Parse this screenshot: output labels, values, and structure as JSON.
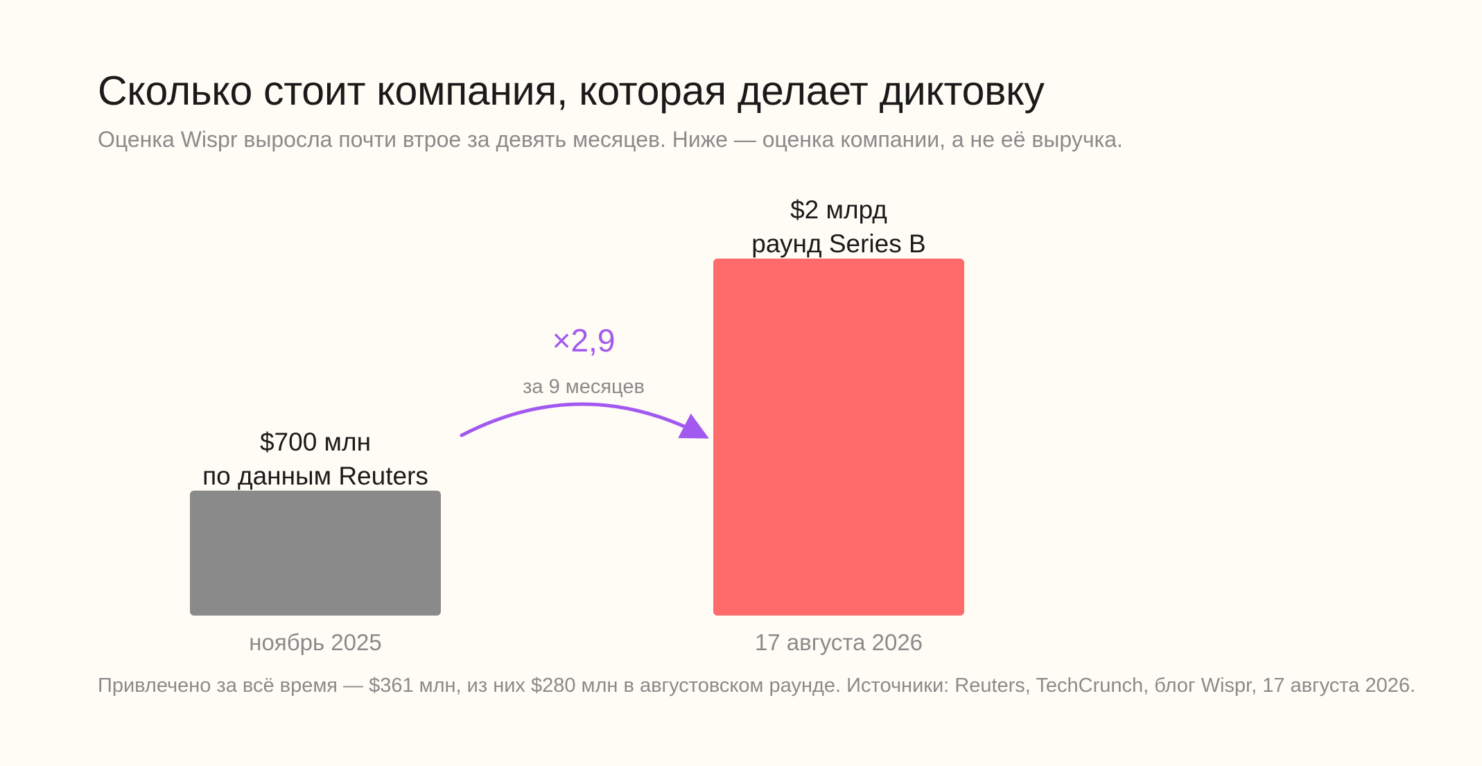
{
  "chart_data": {
    "type": "bar",
    "title": "Сколько стоит компания, которая делает диктовку",
    "subtitle": "Оценка Wispr выросла почти втрое за девять месяцев. Ниже — оценка компании, а не её выручка.",
    "categories": [
      "ноябрь 2025",
      "17 августа 2026"
    ],
    "values": [
      700,
      2000
    ],
    "unit": "млн $",
    "value_labels": [
      "$700 млн",
      "$2 млрд"
    ],
    "value_notes": [
      "по данным Reuters",
      "раунд Series B"
    ],
    "bar_colors": [
      "#8a8a8a",
      "#ff6b6b"
    ],
    "annotation": {
      "multiplier": "×2,9",
      "period": "за 9 месяцев",
      "color": "#a259f0"
    },
    "ylim": [
      0,
      2000
    ],
    "grid": false,
    "footnote": "Привлечено за всё время — $361 млн, из них $280 млн в августовском раунде. Источники: Reuters, TechCrunch, блог Wispr, 17 августа 2026."
  }
}
